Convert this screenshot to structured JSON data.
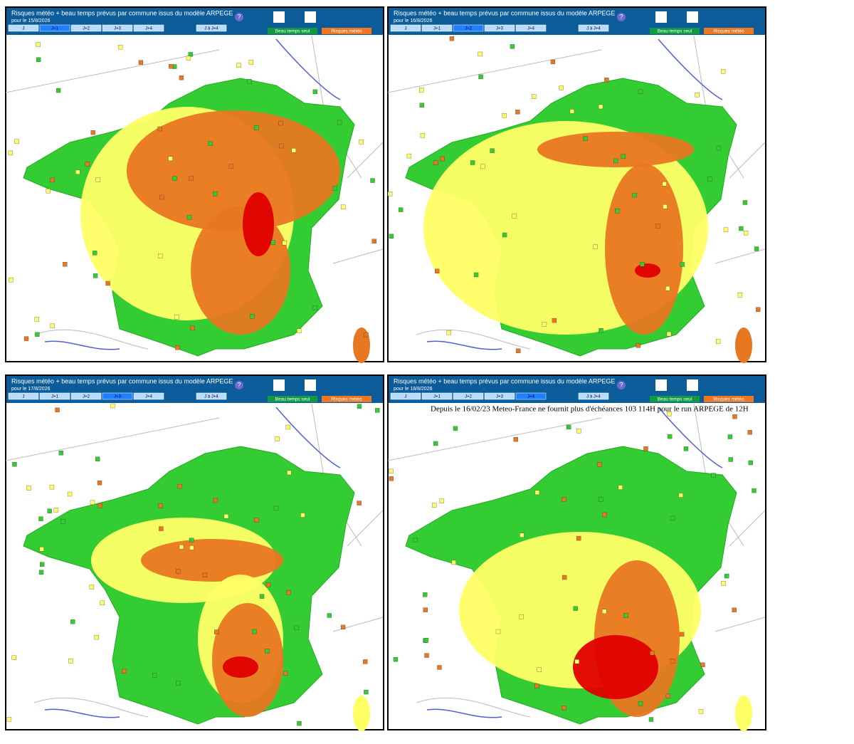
{
  "title": "Risques météo + beau temps prévus par commune issus du modèle ARPEGE",
  "help": "?",
  "tabs": [
    "J",
    "J+1",
    "J+2",
    "J+3",
    "J+4",
    "J à J+4"
  ],
  "buttons": [
    "Beau temps seul",
    "Risques météo"
  ],
  "panels": [
    {
      "date": "pour le 15/8/2026",
      "active_tab": 1
    },
    {
      "date": "pour le 16/8/2026",
      "active_tab": 2
    },
    {
      "date": "pour le 17/8/2026",
      "active_tab": 3
    },
    {
      "date": "pour le 18/8/2026",
      "active_tab": 4,
      "notice": "Depuis le 16/02/23 Meteo-France ne fournit plus d'échéances 103 114H pour le run ARPEGE de 12H"
    }
  ]
}
